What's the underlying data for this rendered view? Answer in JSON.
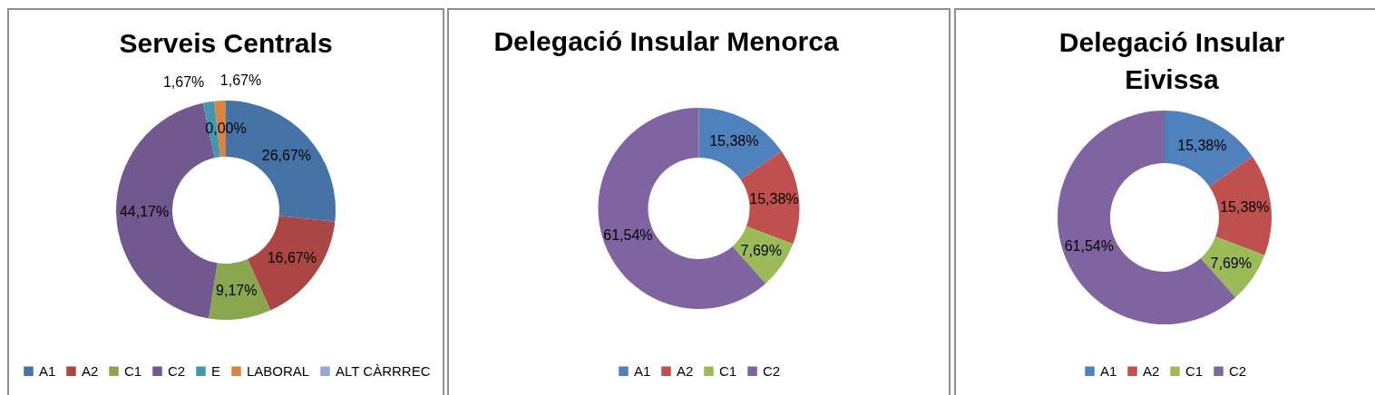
{
  "chart_data": [
    {
      "type": "donut",
      "title": "Serveis Centrals",
      "categories": [
        "A1",
        "A2",
        "C1",
        "C2",
        "E",
        "LABORAL",
        "ALT CÀRRREC"
      ],
      "values": [
        26.67,
        16.67,
        9.17,
        44.17,
        1.67,
        1.67,
        0
      ],
      "colors": [
        "#4572a7",
        "#aa4643",
        "#89a54e",
        "#71588f",
        "#4198af",
        "#db843d",
        "#93a9cf"
      ],
      "value_labels": [
        "26,67%",
        "16,67%",
        "9,17%",
        "44,17%",
        "1,67%",
        "1,67%",
        "0,00%"
      ],
      "legend": "bottom"
    },
    {
      "type": "donut",
      "title": "Delegació Insular Menorca",
      "categories": [
        "A1",
        "A2",
        "C1",
        "C2"
      ],
      "values": [
        15.38,
        15.38,
        7.69,
        61.54
      ],
      "colors": [
        "#4f81bd",
        "#c0504d",
        "#9bbb59",
        "#8064a2"
      ],
      "value_labels": [
        "15,38%",
        "15,38%",
        "7,69%",
        "61,54%"
      ],
      "legend": "bottom"
    },
    {
      "type": "donut",
      "title": "Delegació Insular Eivissa",
      "categories": [
        "A1",
        "A2",
        "C1",
        "C2"
      ],
      "values": [
        15.38,
        15.38,
        7.69,
        61.54
      ],
      "colors": [
        "#4f81bd",
        "#c0504d",
        "#9bbb59",
        "#8064a2"
      ],
      "value_labels": [
        "15,38%",
        "15,38%",
        "7,69%",
        "61,54%"
      ],
      "legend": "bottom"
    }
  ]
}
